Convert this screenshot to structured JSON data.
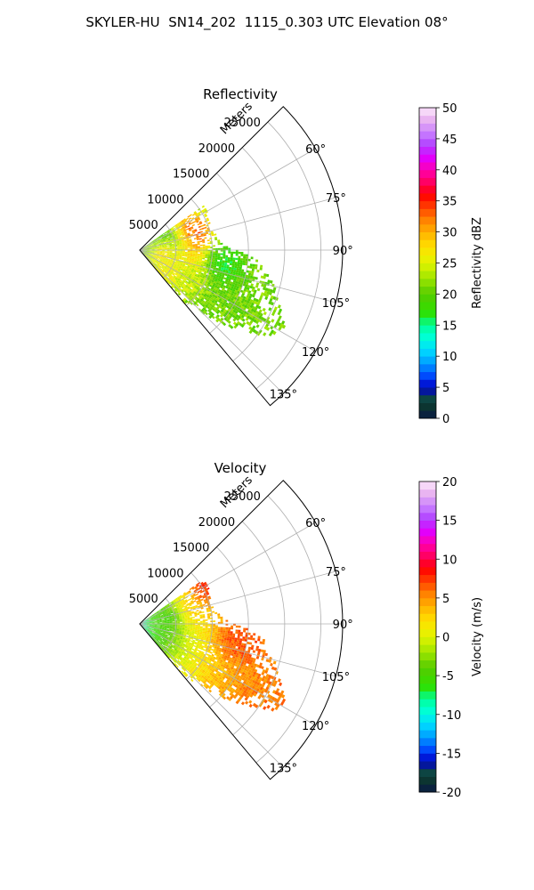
{
  "suptitle": "SKYLER-HU  SN14_202  1115_0.303 UTC Elevation 08°",
  "chart_data": [
    {
      "type": "heatmap",
      "projection": "polar-sector",
      "title": "Reflectivity",
      "range_label": "Meters",
      "range_ticks": [
        5000,
        10000,
        15000,
        20000,
        25000
      ],
      "range_lim": [
        0,
        28000
      ],
      "azimuth_ticks": [
        "60°",
        "75°",
        "90°",
        "105°",
        "120°",
        "135°"
      ],
      "azimuth_values": [
        60,
        75,
        90,
        105,
        120,
        135
      ],
      "azimuth_lim": [
        45,
        140
      ],
      "grid": true,
      "colorbar": {
        "label": "Reflectivity dBZ",
        "lim": [
          0,
          50
        ],
        "ticks": [
          0,
          5,
          10,
          15,
          20,
          25,
          30,
          35,
          40,
          45,
          50
        ],
        "stops": [
          {
            "v": 0,
            "c": "#0a1a4a"
          },
          {
            "v": 1.5,
            "c": "#0b2e2e"
          },
          {
            "v": 3,
            "c": "#0e4a3a"
          },
          {
            "v": 5,
            "c": "#0000c8"
          },
          {
            "v": 7,
            "c": "#0050ff"
          },
          {
            "v": 9,
            "c": "#00a0ff"
          },
          {
            "v": 11,
            "c": "#00dcff"
          },
          {
            "v": 13,
            "c": "#00ffd8"
          },
          {
            "v": 15,
            "c": "#00ff9a"
          },
          {
            "v": 17,
            "c": "#2ee000"
          },
          {
            "v": 20,
            "c": "#55cc00"
          },
          {
            "v": 22,
            "c": "#8fe000"
          },
          {
            "v": 24,
            "c": "#c8f000"
          },
          {
            "v": 26,
            "c": "#f0f000"
          },
          {
            "v": 28,
            "c": "#ffd800"
          },
          {
            "v": 30,
            "c": "#ffb000"
          },
          {
            "v": 32,
            "c": "#ff8000"
          },
          {
            "v": 34,
            "c": "#ff4000"
          },
          {
            "v": 36,
            "c": "#ff0000"
          },
          {
            "v": 38,
            "c": "#ff0060"
          },
          {
            "v": 40,
            "c": "#ff00b0"
          },
          {
            "v": 42,
            "c": "#e000ff"
          },
          {
            "v": 44,
            "c": "#b040ff"
          },
          {
            "v": 46,
            "c": "#c880ff"
          },
          {
            "v": 48,
            "c": "#e8b0f0"
          },
          {
            "v": 50,
            "c": "#fde8fb"
          }
        ]
      },
      "data_extent": [
        {
          "az": 58,
          "r": 10800
        },
        {
          "az": 62,
          "r": 10500
        },
        {
          "az": 66,
          "r": 10300
        },
        {
          "az": 70,
          "r": 10200
        },
        {
          "az": 74,
          "r": 10300
        },
        {
          "az": 78,
          "r": 10500
        },
        {
          "az": 82,
          "r": 10800
        },
        {
          "az": 86,
          "r": 11500
        },
        {
          "az": 90,
          "r": 13500
        },
        {
          "az": 94,
          "r": 16000
        },
        {
          "az": 98,
          "r": 17500
        },
        {
          "az": 102,
          "r": 18200
        },
        {
          "az": 106,
          "r": 19500
        },
        {
          "az": 110,
          "r": 20500
        },
        {
          "az": 114,
          "r": 21500
        },
        {
          "az": 118,
          "r": 22500
        },
        {
          "az": 122,
          "r": 22000
        },
        {
          "az": 126,
          "r": 19000
        },
        {
          "az": 130,
          "r": 16000
        },
        {
          "az": 134,
          "r": 12500
        },
        {
          "az": 138,
          "r": 9500
        }
      ],
      "features": [
        {
          "az": 90,
          "r": 4800,
          "value": 14
        },
        {
          "az": 94,
          "r": 7500,
          "value": 13
        },
        {
          "az": 76,
          "r": 6500,
          "value": 35
        },
        {
          "az": 72,
          "r": 7500,
          "value": 34
        },
        {
          "az": 106,
          "r": 4200,
          "value": 36
        },
        {
          "az": 104,
          "r": 6800,
          "value": 33
        },
        {
          "az": 80,
          "r": 3000,
          "value": 12
        },
        {
          "az": 100,
          "r": 3200,
          "value": 27
        },
        {
          "az": 118,
          "r": 7500,
          "value": 24
        },
        {
          "az": 98,
          "r": 12000,
          "value": 17
        }
      ],
      "base_value": 21
    },
    {
      "type": "heatmap",
      "projection": "polar-sector",
      "title": "Velocity",
      "range_label": "Meters",
      "range_ticks": [
        5000,
        10000,
        15000,
        20000,
        25000
      ],
      "range_lim": [
        0,
        28000
      ],
      "azimuth_ticks": [
        "60°",
        "75°",
        "90°",
        "105°",
        "120°",
        "135°"
      ],
      "azimuth_values": [
        60,
        75,
        90,
        105,
        120,
        135
      ],
      "azimuth_lim": [
        45,
        140
      ],
      "grid": true,
      "colorbar": {
        "label": "Velocity (m/s)",
        "lim": [
          -20,
          20
        ],
        "ticks": [
          -20,
          -15,
          -10,
          -5,
          0,
          5,
          10,
          15,
          20
        ],
        "stops": [
          {
            "v": -20,
            "c": "#0a1a4a"
          },
          {
            "v": -18.8,
            "c": "#0b2e2e"
          },
          {
            "v": -17.6,
            "c": "#0e4a3a"
          },
          {
            "v": -16,
            "c": "#0000c8"
          },
          {
            "v": -14.4,
            "c": "#0050ff"
          },
          {
            "v": -12.8,
            "c": "#00a0ff"
          },
          {
            "v": -11.2,
            "c": "#00dcff"
          },
          {
            "v": -9.6,
            "c": "#00ffd8"
          },
          {
            "v": -8,
            "c": "#00ff9a"
          },
          {
            "v": -6.4,
            "c": "#2ee000"
          },
          {
            "v": -4,
            "c": "#55cc00"
          },
          {
            "v": -2.4,
            "c": "#8fe000"
          },
          {
            "v": -0.8,
            "c": "#c8f000"
          },
          {
            "v": 0.8,
            "c": "#f0f000"
          },
          {
            "v": 2.4,
            "c": "#ffd800"
          },
          {
            "v": 4,
            "c": "#ffb000"
          },
          {
            "v": 5.6,
            "c": "#ff8000"
          },
          {
            "v": 7.2,
            "c": "#ff4000"
          },
          {
            "v": 8.8,
            "c": "#ff0000"
          },
          {
            "v": 10.4,
            "c": "#ff0060"
          },
          {
            "v": 12,
            "c": "#ff00b0"
          },
          {
            "v": 13.6,
            "c": "#e000ff"
          },
          {
            "v": 15.2,
            "c": "#b040ff"
          },
          {
            "v": 16.8,
            "c": "#c880ff"
          },
          {
            "v": 18.4,
            "c": "#e8b0f0"
          },
          {
            "v": 20,
            "c": "#fde8fb"
          }
        ]
      },
      "data_extent": [
        {
          "az": 58,
          "r": 10800
        },
        {
          "az": 62,
          "r": 10500
        },
        {
          "az": 66,
          "r": 10300
        },
        {
          "az": 70,
          "r": 10200
        },
        {
          "az": 74,
          "r": 10300
        },
        {
          "az": 78,
          "r": 10500
        },
        {
          "az": 82,
          "r": 10800
        },
        {
          "az": 86,
          "r": 11500
        },
        {
          "az": 90,
          "r": 13500
        },
        {
          "az": 94,
          "r": 16000
        },
        {
          "az": 98,
          "r": 17500
        },
        {
          "az": 102,
          "r": 18200
        },
        {
          "az": 106,
          "r": 19500
        },
        {
          "az": 110,
          "r": 20500
        },
        {
          "az": 114,
          "r": 21500
        },
        {
          "az": 118,
          "r": 22500
        },
        {
          "az": 122,
          "r": 22000
        },
        {
          "az": 126,
          "r": 19000
        },
        {
          "az": 130,
          "r": 16000
        },
        {
          "az": 134,
          "r": 12500
        },
        {
          "az": 138,
          "r": 9500
        }
      ],
      "radial_profile": [
        {
          "r": 0,
          "value": -10
        },
        {
          "r": 2000,
          "value": -8
        },
        {
          "r": 4000,
          "value": -4
        },
        {
          "r": 6500,
          "value": -1
        },
        {
          "r": 9000,
          "value": 1
        },
        {
          "r": 12000,
          "value": 3
        },
        {
          "r": 16000,
          "value": 5
        },
        {
          "r": 22000,
          "value": 6
        }
      ],
      "features": [
        {
          "az": 100,
          "r": 14500,
          "value": 7
        },
        {
          "az": 96,
          "r": 13000,
          "value": 6.5
        },
        {
          "az": 60,
          "r": 10000,
          "value": 8
        },
        {
          "az": 75,
          "r": 6000,
          "value": 4
        },
        {
          "az": 82,
          "r": 3500,
          "value": -5
        }
      ]
    }
  ]
}
